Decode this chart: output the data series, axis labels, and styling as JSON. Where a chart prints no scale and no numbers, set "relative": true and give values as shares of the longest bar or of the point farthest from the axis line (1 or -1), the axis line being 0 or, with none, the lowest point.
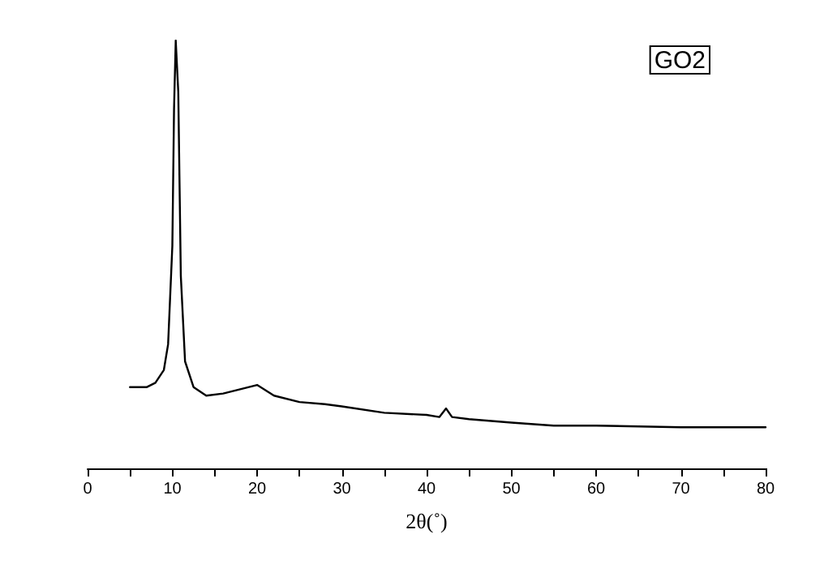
{
  "chart_data": {
    "type": "line",
    "relative": true,
    "xlabel": "2θ(˚)",
    "annotations": [
      "GO2"
    ],
    "xlim": [
      0,
      80
    ],
    "xticks": [
      0,
      {
        "value": 5,
        "label": null
      },
      10,
      {
        "value": 15,
        "label": null
      },
      20,
      {
        "value": 25,
        "label": null
      },
      30,
      {
        "value": 35,
        "label": null
      },
      40,
      {
        "value": 45,
        "label": null
      },
      50,
      {
        "value": 55,
        "label": null
      },
      60,
      {
        "value": 65,
        "label": null
      },
      70,
      {
        "value": 75,
        "label": null
      },
      80
    ],
    "marker": "none",
    "line_style": "solid",
    "series": [
      {
        "color": "#000000",
        "x": [
          5,
          7,
          8,
          9,
          9.5,
          10,
          10.2,
          10.4,
          10.7,
          11,
          11.5,
          12.5,
          14,
          16,
          18,
          20,
          22,
          25,
          28,
          30,
          35,
          40,
          41.5,
          42.3,
          43,
          45,
          50,
          55,
          60,
          70,
          80
        ],
        "values": [
          0.19,
          0.19,
          0.2,
          0.23,
          0.29,
          0.52,
          0.84,
          1,
          0.88,
          0.45,
          0.25,
          0.19,
          0.17,
          0.175,
          0.185,
          0.195,
          0.17,
          0.155,
          0.15,
          0.145,
          0.13,
          0.125,
          0.12,
          0.14,
          0.12,
          0.115,
          0.107,
          0.1,
          0.1,
          0.096,
          0.096
        ]
      }
    ]
  }
}
